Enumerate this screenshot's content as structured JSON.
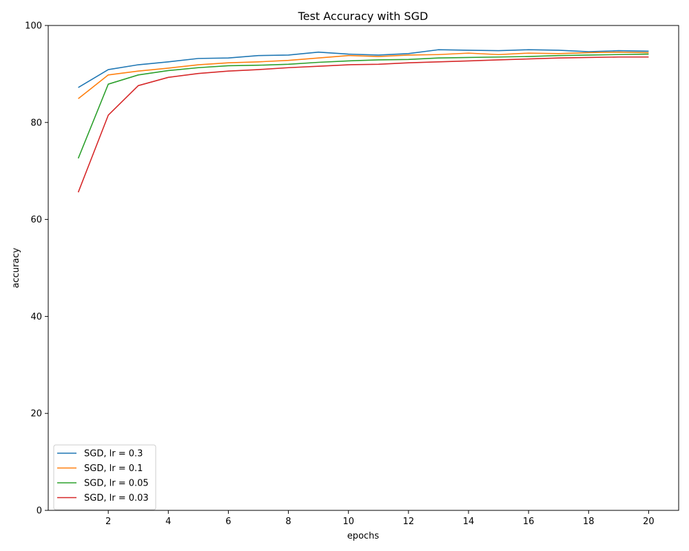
{
  "chart_data": {
    "type": "line",
    "title": "Test Accuracy with SGD",
    "xlabel": "epochs",
    "ylabel": "accuracy",
    "xlim": [
      0,
      21
    ],
    "ylim": [
      0,
      100
    ],
    "xticks": [
      2,
      4,
      6,
      8,
      10,
      12,
      14,
      16,
      18,
      20
    ],
    "yticks": [
      0,
      20,
      40,
      60,
      80,
      100
    ],
    "grid": false,
    "legend_position": "lower-left",
    "x": [
      1,
      2,
      3,
      4,
      5,
      6,
      7,
      8,
      9,
      10,
      11,
      12,
      13,
      14,
      15,
      16,
      17,
      18,
      19,
      20
    ],
    "series": [
      {
        "name": "SGD, lr = 0.3",
        "color": "#1f77b4",
        "values": [
          87.2,
          90.9,
          91.9,
          92.5,
          93.2,
          93.3,
          93.8,
          93.9,
          94.5,
          94.1,
          93.9,
          94.2,
          95.0,
          94.9,
          94.8,
          95.0,
          94.9,
          94.6,
          94.8,
          94.7
        ]
      },
      {
        "name": "SGD, lr = 0.1",
        "color": "#ff7f0e",
        "values": [
          84.9,
          89.8,
          90.6,
          91.2,
          91.9,
          92.3,
          92.5,
          92.8,
          93.3,
          93.8,
          93.6,
          93.9,
          94.0,
          94.3,
          94.0,
          94.3,
          94.2,
          94.4,
          94.5,
          94.4
        ]
      },
      {
        "name": "SGD, lr = 0.05",
        "color": "#2ca02c",
        "values": [
          72.6,
          87.9,
          89.8,
          90.7,
          91.3,
          91.7,
          91.8,
          92.0,
          92.4,
          92.7,
          92.9,
          93.0,
          93.3,
          93.4,
          93.5,
          93.6,
          93.8,
          93.9,
          94.0,
          94.1
        ]
      },
      {
        "name": "SGD, lr = 0.03",
        "color": "#d62728",
        "values": [
          65.6,
          81.5,
          87.6,
          89.3,
          90.1,
          90.6,
          90.9,
          91.3,
          91.6,
          91.9,
          92.0,
          92.3,
          92.5,
          92.7,
          92.9,
          93.1,
          93.3,
          93.4,
          93.5,
          93.5
        ]
      }
    ]
  }
}
